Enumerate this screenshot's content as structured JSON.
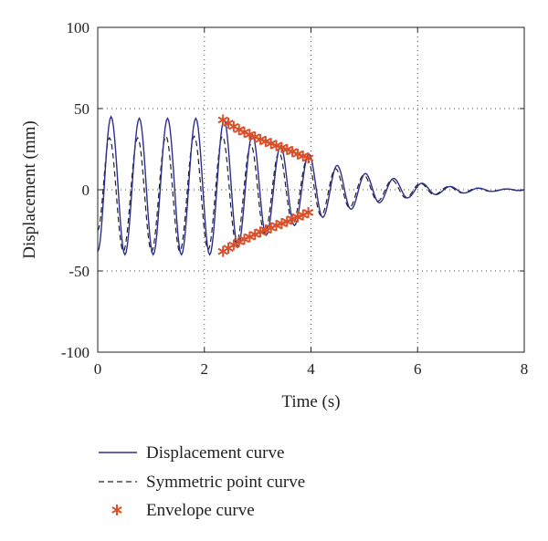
{
  "chart_data": {
    "type": "line",
    "title": "",
    "xlabel": "Time (s)",
    "ylabel": "Displacement (mm)",
    "xlim": [
      0,
      8
    ],
    "ylim": [
      -100,
      100
    ],
    "xticks": [
      "0",
      "2",
      "4",
      "6",
      "8"
    ],
    "yticks": [
      "100",
      "50",
      "0",
      "-50",
      "-100"
    ],
    "grid": "dotted",
    "legend_position": "bottom",
    "colors": {
      "displacement": "#2b2f8f",
      "symmetric": "#222222",
      "envelope": "#d9502a"
    },
    "series": [
      {
        "name": "Displacement curve",
        "style": "solid",
        "description_points": {
          "peaks_x": [
            0.25,
            0.78,
            1.31,
            1.84,
            2.37,
            2.9,
            3.43,
            3.96,
            4.49,
            5.02,
            5.55,
            6.08,
            6.61,
            7.14,
            7.67
          ],
          "peaks_y": [
            45,
            44,
            44,
            44,
            43,
            34,
            27,
            22,
            15,
            10,
            7,
            4,
            2,
            1,
            0.5
          ],
          "troughs_x": [
            0.51,
            1.04,
            1.57,
            2.1,
            2.63,
            3.16,
            3.69,
            4.22,
            4.75,
            5.28,
            5.81,
            6.34,
            6.87,
            7.4,
            7.93
          ],
          "troughs_y": [
            -40,
            -40,
            -40,
            -40,
            -35,
            -28,
            -22,
            -17,
            -12,
            -8,
            -5,
            -3,
            -2,
            -1,
            -0.5
          ]
        }
      },
      {
        "name": "Symmetric point curve",
        "style": "dashed",
        "description_points": {
          "peaks_x": [
            0.22,
            0.75,
            1.28,
            1.81,
            2.34,
            2.87,
            3.4,
            3.93,
            4.46,
            4.99,
            5.52,
            6.05,
            6.58,
            7.11,
            7.64
          ],
          "peaks_y": [
            32,
            32,
            33,
            33,
            33,
            28,
            23,
            19,
            13,
            9,
            6,
            4,
            2,
            1,
            0.5
          ],
          "troughs_x": [
            0.48,
            1.01,
            1.54,
            2.07,
            2.6,
            3.13,
            3.66,
            4.19,
            4.72,
            5.25,
            5.78,
            6.31,
            6.84,
            7.37,
            7.9
          ],
          "troughs_y": [
            -38,
            -38,
            -38,
            -37,
            -33,
            -27,
            -21,
            -16,
            -11,
            -7,
            -5,
            -3,
            -2,
            -1,
            -0.5
          ]
        }
      },
      {
        "name": "Envelope curve",
        "style": "asterisk",
        "upper": {
          "x": [
            2.35,
            2.45,
            2.55,
            2.65,
            2.75,
            2.85,
            2.95,
            3.05,
            3.15,
            3.25,
            3.35,
            3.45,
            3.55,
            3.65,
            3.75,
            3.85,
            3.95
          ],
          "y": [
            43,
            41,
            39,
            37,
            35.5,
            34,
            32.5,
            31,
            29.8,
            28.5,
            27.2,
            26,
            24.8,
            23.5,
            22,
            20.8,
            19.5
          ]
        },
        "lower": {
          "x": [
            2.35,
            2.45,
            2.55,
            2.65,
            2.75,
            2.85,
            2.95,
            3.05,
            3.15,
            3.25,
            3.35,
            3.45,
            3.55,
            3.65,
            3.75,
            3.85,
            3.95
          ],
          "y": [
            -38,
            -36,
            -34,
            -32,
            -30.5,
            -29,
            -27.5,
            -26,
            -24.8,
            -23.5,
            -22,
            -20.8,
            -19.5,
            -18,
            -16.8,
            -15.5,
            -14
          ]
        }
      }
    ]
  }
}
